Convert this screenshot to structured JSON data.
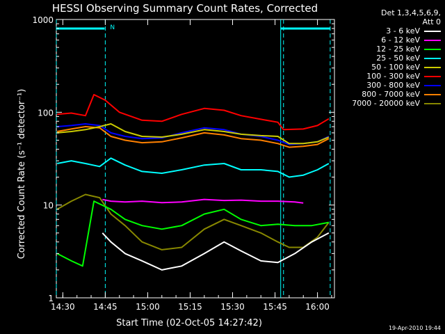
{
  "chart_data": {
    "type": "line",
    "title": "HESSI Observing Summary Count Rates, Corrected",
    "xlabel": "Start Time (02-Oct-05 14:27:42)",
    "ylabel": "Corrected Count Rate (s⁻¹ detector⁻¹)",
    "y_scale": "log",
    "ylim": [
      1,
      1000
    ],
    "xlim": [
      "14:27:42",
      "16:06:00"
    ],
    "x_ticks": [
      "14:30",
      "14:45",
      "15:00",
      "15:15",
      "15:30",
      "15:45",
      "16:00"
    ],
    "y_ticks": [
      "1",
      "10",
      "100",
      "1000"
    ],
    "legend_header": [
      "Det 1,3,4,5,6,9,",
      "Att 0"
    ],
    "legend_position": "right",
    "markers": {
      "night_bar_label": "N",
      "dashed_vertical_times": [
        "14:27:42",
        "14:45:00",
        "15:48:00",
        "16:04:30"
      ],
      "solid_vertical_times": [
        "15:47:00"
      ]
    },
    "series": [
      {
        "name": "3 - 6 keV",
        "color": "#ffffff",
        "x": [
          "14:44",
          "14:47",
          "14:52",
          "14:58",
          "15:05",
          "15:12",
          "15:20",
          "15:27",
          "15:33",
          "15:40",
          "15:46",
          "15:52",
          "15:58",
          "16:04"
        ],
        "y": [
          5,
          4,
          3,
          2.5,
          2,
          2.2,
          3,
          4,
          3.2,
          2.5,
          2.4,
          3,
          4,
          5
        ]
      },
      {
        "name": "6 - 12 keV",
        "color": "#ff00ff",
        "x": [
          "14:44",
          "14:47",
          "14:52",
          "14:58",
          "15:05",
          "15:12",
          "15:20",
          "15:27",
          "15:33",
          "15:40",
          "15:46",
          "15:52",
          "15:55"
        ],
        "y": [
          11.5,
          11,
          10.8,
          11,
          10.6,
          10.8,
          11.5,
          11.2,
          11.3,
          11,
          11,
          10.8,
          10.5
        ]
      },
      {
        "name": "12 - 25 keV",
        "color": "#00ff00",
        "x": [
          "14:28",
          "14:33",
          "14:37",
          "14:41",
          "14:47",
          "14:52",
          "14:58",
          "15:05",
          "15:12",
          "15:20",
          "15:27",
          "15:33",
          "15:40",
          "15:46",
          "15:52",
          "15:58",
          "16:04"
        ],
        "y": [
          3,
          2.5,
          2.2,
          11,
          9,
          7,
          6,
          5.5,
          6,
          8,
          9,
          7,
          6,
          6.2,
          6,
          6,
          6.5
        ]
      },
      {
        "name": "25 - 50 keV",
        "color": "#00ffff",
        "x": [
          "14:28",
          "14:33",
          "14:38",
          "14:43",
          "14:47",
          "14:52",
          "14:58",
          "15:05",
          "15:12",
          "15:20",
          "15:27",
          "15:33",
          "15:40",
          "15:46",
          "15:50",
          "15:55",
          "16:00",
          "16:04"
        ],
        "y": [
          28,
          30,
          28,
          26,
          32,
          27,
          23,
          22,
          24,
          27,
          28,
          24,
          24,
          23,
          20,
          21,
          24,
          28
        ]
      },
      {
        "name": "50 - 100 keV",
        "color": "#cccc00",
        "x": [
          "14:28",
          "14:33",
          "14:38",
          "14:43",
          "14:47",
          "14:52",
          "14:58",
          "15:05",
          "15:12",
          "15:20",
          "15:27",
          "15:33",
          "15:40",
          "15:46",
          "15:50",
          "15:55",
          "16:00",
          "16:04"
        ],
        "y": [
          60,
          62,
          65,
          70,
          75,
          62,
          55,
          54,
          58,
          65,
          62,
          58,
          56,
          55,
          46,
          46,
          48,
          54
        ]
      },
      {
        "name": "100 - 300 keV",
        "color": "#ff0000",
        "x": [
          "14:28",
          "14:33",
          "14:38",
          "14:41",
          "14:45",
          "14:50",
          "14:58",
          "15:05",
          "15:12",
          "15:20",
          "15:27",
          "15:33",
          "15:40",
          "15:46",
          "15:48",
          "15:55",
          "16:00",
          "16:04"
        ],
        "y": [
          95,
          98,
          92,
          155,
          135,
          100,
          82,
          80,
          95,
          110,
          105,
          92,
          84,
          78,
          65,
          66,
          72,
          85
        ]
      },
      {
        "name": "300 - 800 keV",
        "color": "#0000ff",
        "x": [
          "14:28",
          "14:33",
          "14:38",
          "14:43",
          "14:47",
          "14:52",
          "14:58",
          "15:05",
          "15:12",
          "15:20",
          "15:27",
          "15:33",
          "15:40",
          "15:46",
          "15:50",
          "15:55",
          "16:00",
          "16:04"
        ],
        "y": [
          70,
          72,
          75,
          72,
          60,
          55,
          52,
          53,
          60,
          68,
          65,
          58,
          55,
          50,
          45,
          46,
          48,
          55
        ]
      },
      {
        "name": "800 - 7000 keV",
        "color": "#ff8000",
        "x": [
          "14:28",
          "14:33",
          "14:38",
          "14:43",
          "14:47",
          "14:52",
          "14:58",
          "15:05",
          "15:12",
          "15:20",
          "15:27",
          "15:33",
          "15:40",
          "15:46",
          "15:50",
          "15:55",
          "16:00",
          "16:04"
        ],
        "y": [
          62,
          66,
          70,
          68,
          55,
          50,
          47,
          48,
          53,
          60,
          57,
          52,
          50,
          46,
          42,
          43,
          45,
          52
        ]
      },
      {
        "name": "7000 - 20000 keV",
        "color": "#888800",
        "x": [
          "14:28",
          "14:33",
          "14:38",
          "14:43",
          "14:47",
          "14:52",
          "14:58",
          "15:05",
          "15:12",
          "15:20",
          "15:27",
          "15:33",
          "15:40",
          "15:46",
          "15:50",
          "15:55",
          "16:00",
          "16:04"
        ],
        "y": [
          9,
          11,
          13,
          12,
          8,
          6,
          4,
          3.3,
          3.5,
          5.5,
          7,
          6,
          5,
          4,
          3.5,
          3.5,
          4.5,
          6.5
        ]
      }
    ]
  },
  "timestamp": "19-Apr-2010 19:44"
}
